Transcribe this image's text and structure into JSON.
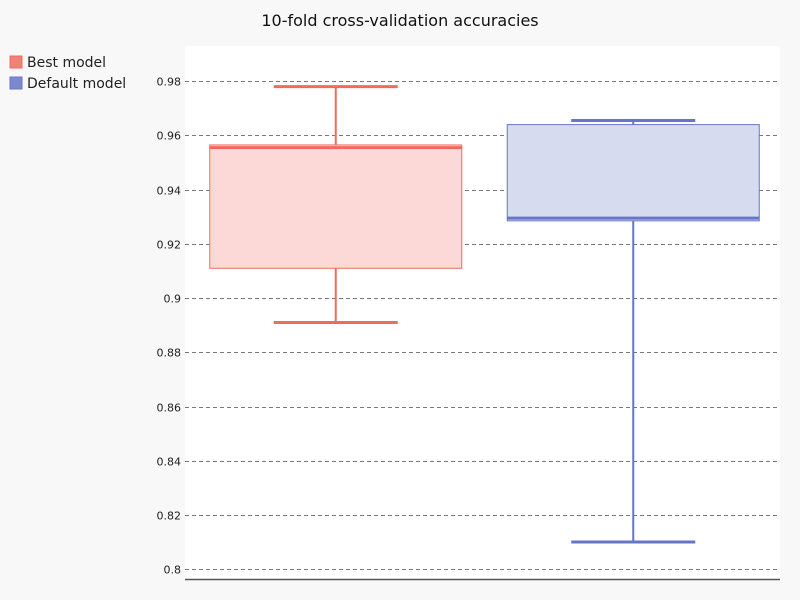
{
  "chart_data": {
    "type": "box",
    "title": "10-fold cross-validation accuracies",
    "xlabel": "",
    "ylabel": "",
    "ylim": [
      0.796,
      0.993
    ],
    "yticks": [
      0.8,
      0.82,
      0.84,
      0.86,
      0.88,
      0.9,
      0.92,
      0.94,
      0.96,
      0.98
    ],
    "ytick_labels": [
      "0.8",
      "0.82",
      "0.84",
      "0.86",
      "0.88",
      "0.9",
      "0.92",
      "0.94",
      "0.96",
      "0.98"
    ],
    "grid": "horizontal dashed",
    "legend_position": "top-left",
    "series": [
      {
        "name": "Best model",
        "color": "#f06b5f",
        "fill": "#fcd9d6",
        "min": 0.891,
        "q1": 0.911,
        "median": 0.9555,
        "q3": 0.9565,
        "max": 0.978
      },
      {
        "name": "Default model",
        "color": "#6675c8",
        "fill": "#d6dbef",
        "min": 0.81,
        "q1": 0.9285,
        "median": 0.9295,
        "q3": 0.964,
        "max": 0.9655
      }
    ]
  }
}
